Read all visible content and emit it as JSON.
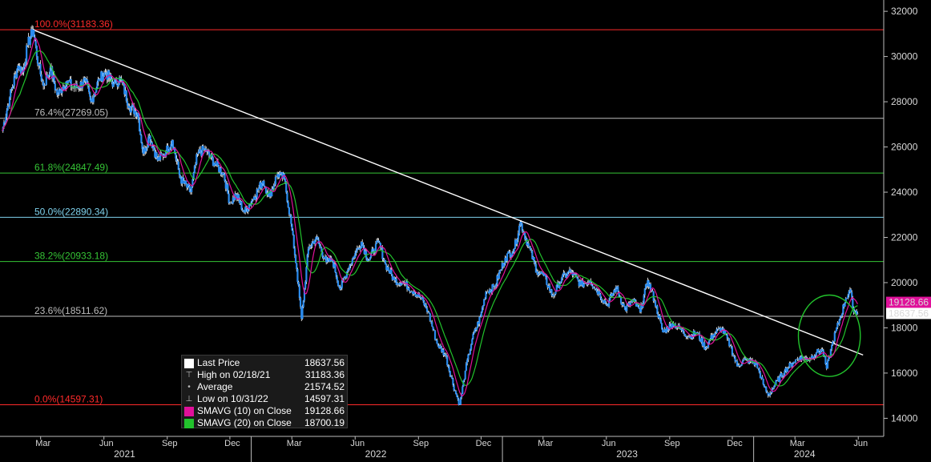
{
  "chart_data": {
    "type": "line",
    "ylim": [
      13200,
      32500
    ],
    "y_ticks": [
      "14000",
      "16000",
      "18000",
      "20000",
      "22000",
      "24000",
      "26000",
      "28000",
      "30000",
      "32000"
    ],
    "x_months": [
      {
        "label": "Mar",
        "date": "2021-03-01"
      },
      {
        "label": "Jun",
        "date": "2021-06-01"
      },
      {
        "label": "Sep",
        "date": "2021-09-01"
      },
      {
        "label": "Dec",
        "date": "2021-12-01"
      },
      {
        "label": "Mar",
        "date": "2022-03-01"
      },
      {
        "label": "Jun",
        "date": "2022-06-01"
      },
      {
        "label": "Sep",
        "date": "2022-09-01"
      },
      {
        "label": "Dec",
        "date": "2022-12-01"
      },
      {
        "label": "Mar",
        "date": "2023-03-01"
      },
      {
        "label": "Jun",
        "date": "2023-06-01"
      },
      {
        "label": "Sep",
        "date": "2023-09-01"
      },
      {
        "label": "Dec",
        "date": "2023-12-01"
      },
      {
        "label": "Mar",
        "date": "2024-03-01"
      },
      {
        "label": "Jun",
        "date": "2024-06-01"
      }
    ],
    "x_years": [
      {
        "label": "2021",
        "date": "2021-07-01"
      },
      {
        "label": "2022",
        "date": "2022-07-01"
      },
      {
        "label": "2023",
        "date": "2023-07-01"
      },
      {
        "label": "2024",
        "date": "2024-03-15"
      }
    ],
    "year_boundaries": [
      "2022-01-01",
      "2023-01-01",
      "2024-01-01"
    ],
    "price_points": [
      [
        "2021-01-04",
        26700
      ],
      [
        "2021-01-15",
        28200
      ],
      [
        "2021-01-27",
        29600
      ],
      [
        "2021-02-03",
        29300
      ],
      [
        "2021-02-10",
        30500
      ],
      [
        "2021-02-18",
        31183.36
      ],
      [
        "2021-02-26",
        29600
      ],
      [
        "2021-03-05",
        28700
      ],
      [
        "2021-03-15",
        29500
      ],
      [
        "2021-03-25",
        28300
      ],
      [
        "2021-04-07",
        28900
      ],
      [
        "2021-04-20",
        28600
      ],
      [
        "2021-05-05",
        28900
      ],
      [
        "2021-05-13",
        28000
      ],
      [
        "2021-05-25",
        29000
      ],
      [
        "2021-06-03",
        29300
      ],
      [
        "2021-06-15",
        28800
      ],
      [
        "2021-06-25",
        29000
      ],
      [
        "2021-07-08",
        27800
      ],
      [
        "2021-07-20",
        27500
      ],
      [
        "2021-07-28",
        25700
      ],
      [
        "2021-08-06",
        26500
      ],
      [
        "2021-08-18",
        25400
      ],
      [
        "2021-08-30",
        25800
      ],
      [
        "2021-09-08",
        26300
      ],
      [
        "2021-09-20",
        24600
      ],
      [
        "2021-10-05",
        24000
      ],
      [
        "2021-10-15",
        25700
      ],
      [
        "2021-10-26",
        25900
      ],
      [
        "2021-11-08",
        25300
      ],
      [
        "2021-11-22",
        24800
      ],
      [
        "2021-12-01",
        23500
      ],
      [
        "2021-12-10",
        23900
      ],
      [
        "2021-12-22",
        23100
      ],
      [
        "2022-01-05",
        23800
      ],
      [
        "2022-01-18",
        24500
      ],
      [
        "2022-01-27",
        23800
      ],
      [
        "2022-02-08",
        24800
      ],
      [
        "2022-02-18",
        24600
      ],
      [
        "2022-02-28",
        22600
      ],
      [
        "2022-03-08",
        20600
      ],
      [
        "2022-03-15",
        18400
      ],
      [
        "2022-03-25",
        21500
      ],
      [
        "2022-04-05",
        22000
      ],
      [
        "2022-04-20",
        20900
      ],
      [
        "2022-04-29",
        21000
      ],
      [
        "2022-05-10",
        19700
      ],
      [
        "2022-05-20",
        20500
      ],
      [
        "2022-06-01",
        21300
      ],
      [
        "2022-06-10",
        21800
      ],
      [
        "2022-06-20",
        21000
      ],
      [
        "2022-07-05",
        21800
      ],
      [
        "2022-07-15",
        20800
      ],
      [
        "2022-07-28",
        20100
      ],
      [
        "2022-08-10",
        20000
      ],
      [
        "2022-08-25",
        19600
      ],
      [
        "2022-09-05",
        19300
      ],
      [
        "2022-09-15",
        18700
      ],
      [
        "2022-09-28",
        17300
      ],
      [
        "2022-10-10",
        16800
      ],
      [
        "2022-10-24",
        15200
      ],
      [
        "2022-10-31",
        14597.31
      ],
      [
        "2022-11-08",
        16100
      ],
      [
        "2022-11-18",
        17500
      ],
      [
        "2022-11-30",
        18500
      ],
      [
        "2022-12-08",
        19600
      ],
      [
        "2022-12-20",
        19800
      ],
      [
        "2023-01-05",
        21100
      ],
      [
        "2023-01-18",
        21500
      ],
      [
        "2023-01-27",
        22688
      ],
      [
        "2023-02-08",
        21600
      ],
      [
        "2023-02-20",
        20500
      ],
      [
        "2023-03-02",
        20300
      ],
      [
        "2023-03-15",
        19400
      ],
      [
        "2023-03-28",
        20200
      ],
      [
        "2023-04-10",
        20500
      ],
      [
        "2023-04-25",
        19900
      ],
      [
        "2023-05-08",
        20100
      ],
      [
        "2023-05-22",
        19500
      ],
      [
        "2023-06-02",
        19000
      ],
      [
        "2023-06-15",
        19800
      ],
      [
        "2023-06-28",
        18800
      ],
      [
        "2023-07-10",
        19200
      ],
      [
        "2023-07-20",
        18700
      ],
      [
        "2023-07-31",
        20100
      ],
      [
        "2023-08-10",
        19200
      ],
      [
        "2023-08-22",
        17800
      ],
      [
        "2023-09-05",
        18200
      ],
      [
        "2023-09-18",
        17900
      ],
      [
        "2023-09-29",
        17600
      ],
      [
        "2023-10-10",
        17800
      ],
      [
        "2023-10-23",
        17100
      ],
      [
        "2023-11-03",
        17700
      ],
      [
        "2023-11-15",
        18000
      ],
      [
        "2023-11-28",
        17200
      ],
      [
        "2023-12-08",
        16300
      ],
      [
        "2023-12-20",
        16600
      ],
      [
        "2024-01-05",
        16400
      ],
      [
        "2024-01-15",
        15500
      ],
      [
        "2024-01-22",
        15000
      ],
      [
        "2024-02-01",
        15500
      ],
      [
        "2024-02-15",
        16100
      ],
      [
        "2024-02-28",
        16500
      ],
      [
        "2024-03-08",
        16700
      ],
      [
        "2024-03-20",
        16600
      ],
      [
        "2024-04-01",
        16900
      ],
      [
        "2024-04-10",
        17000
      ],
      [
        "2024-04-16",
        16200
      ],
      [
        "2024-04-25",
        17400
      ],
      [
        "2024-05-06",
        18500
      ],
      [
        "2024-05-14",
        19300
      ],
      [
        "2024-05-20",
        19700
      ],
      [
        "2024-05-24",
        18900
      ],
      [
        "2024-05-31",
        18637.56
      ]
    ],
    "fib_levels": [
      {
        "label": "100.0%(31183.36)",
        "value": 31183.36,
        "color": "#ff2a2a"
      },
      {
        "label": "76.4%(27269.05)",
        "value": 27269.05,
        "color": "#bdbdbd"
      },
      {
        "label": "61.8%(24847.49)",
        "value": 24847.49,
        "color": "#35c435"
      },
      {
        "label": "50.0%(22890.34)",
        "value": 22890.34,
        "color": "#7fd3ee"
      },
      {
        "label": "38.2%(20933.18)",
        "value": 20933.18,
        "color": "#35c435"
      },
      {
        "label": "23.6%(18511.62)",
        "value": 18511.62,
        "color": "#bdbdbd"
      },
      {
        "label": "0.0%(14597.31)",
        "value": 14597.31,
        "color": "#ff2a2a"
      }
    ],
    "trendline": {
      "start": [
        "2021-02-18",
        31183.36
      ],
      "end": [
        "2024-06-08",
        16800
      ]
    },
    "circle": {
      "center": [
        "2024-04-20",
        17650
      ],
      "radius_x_days": 45,
      "radius_y_value": 1800,
      "color": "#22c22c"
    },
    "right_badges": [
      {
        "value": "19128.66",
        "color": "#e0109a",
        "text_color": "#ffffff"
      },
      {
        "value": "18637.56",
        "color": "#ffffff",
        "text_color": "#000000"
      }
    ],
    "colors": {
      "price": "#2a8cf0",
      "sma10": "#e0109a",
      "sma20": "#22c22c",
      "trendline": "#ffffff"
    }
  },
  "legend": [
    {
      "icon": "white-box",
      "name": "Last Price",
      "value": "18637.56"
    },
    {
      "icon": "high-marker",
      "name": "High on 02/18/21",
      "value": "31183.36"
    },
    {
      "icon": "average-marker",
      "name": "Average",
      "value": "21574.52"
    },
    {
      "icon": "low-marker",
      "name": "Low on 10/31/22",
      "value": "14597.31"
    },
    {
      "icon": "magenta-box",
      "name": "SMAVG (10)  on Close",
      "value": "19128.66"
    },
    {
      "icon": "green-box",
      "name": "SMAVG (20)  on Close",
      "value": "18700.19"
    }
  ]
}
